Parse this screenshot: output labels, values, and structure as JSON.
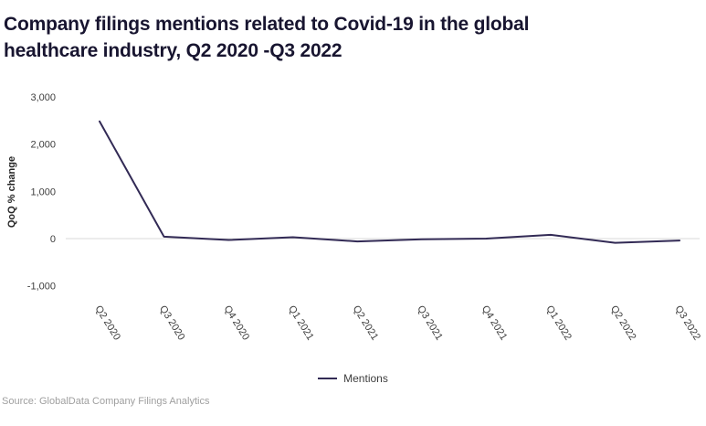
{
  "header": {
    "title_lines": [
      "Company filings mentions related to Covid-19 in the global",
      "healthcare industry, Q2 2020 -Q3 2022"
    ]
  },
  "chart_data": {
    "type": "line",
    "title": "Company filings mentions related to Covid-19 in the global healthcare industry, Q2 2020 -Q3 2022",
    "xlabel": "",
    "ylabel": "QoQ % change",
    "categories": [
      "Q2 2020",
      "Q3 2020",
      "Q4 2020",
      "Q1 2021",
      "Q2 2021",
      "Q3 2021",
      "Q4 2021",
      "Q1 2022",
      "Q2 2022",
      "Q3 2022"
    ],
    "series": [
      {
        "name": "Mentions",
        "values": [
          2480,
          40,
          -30,
          30,
          -60,
          -15,
          0,
          80,
          -90,
          -40
        ]
      }
    ],
    "ylim": [
      -1000,
      3000
    ],
    "yticks": [
      3000,
      2000,
      1000,
      0,
      -1000
    ],
    "grid": "zero-line-only",
    "legend_position": "bottom-center"
  },
  "legend": {
    "label": "Mentions"
  },
  "source": "Source: GlobalData Company Filings Analytics",
  "colors": {
    "line": "#322a55",
    "grid": "#d9d9d9",
    "title": "#181530",
    "axis_text": "#3d3d3d",
    "ylabel_text": "#262626",
    "source_text": "#9f9f9f"
  }
}
